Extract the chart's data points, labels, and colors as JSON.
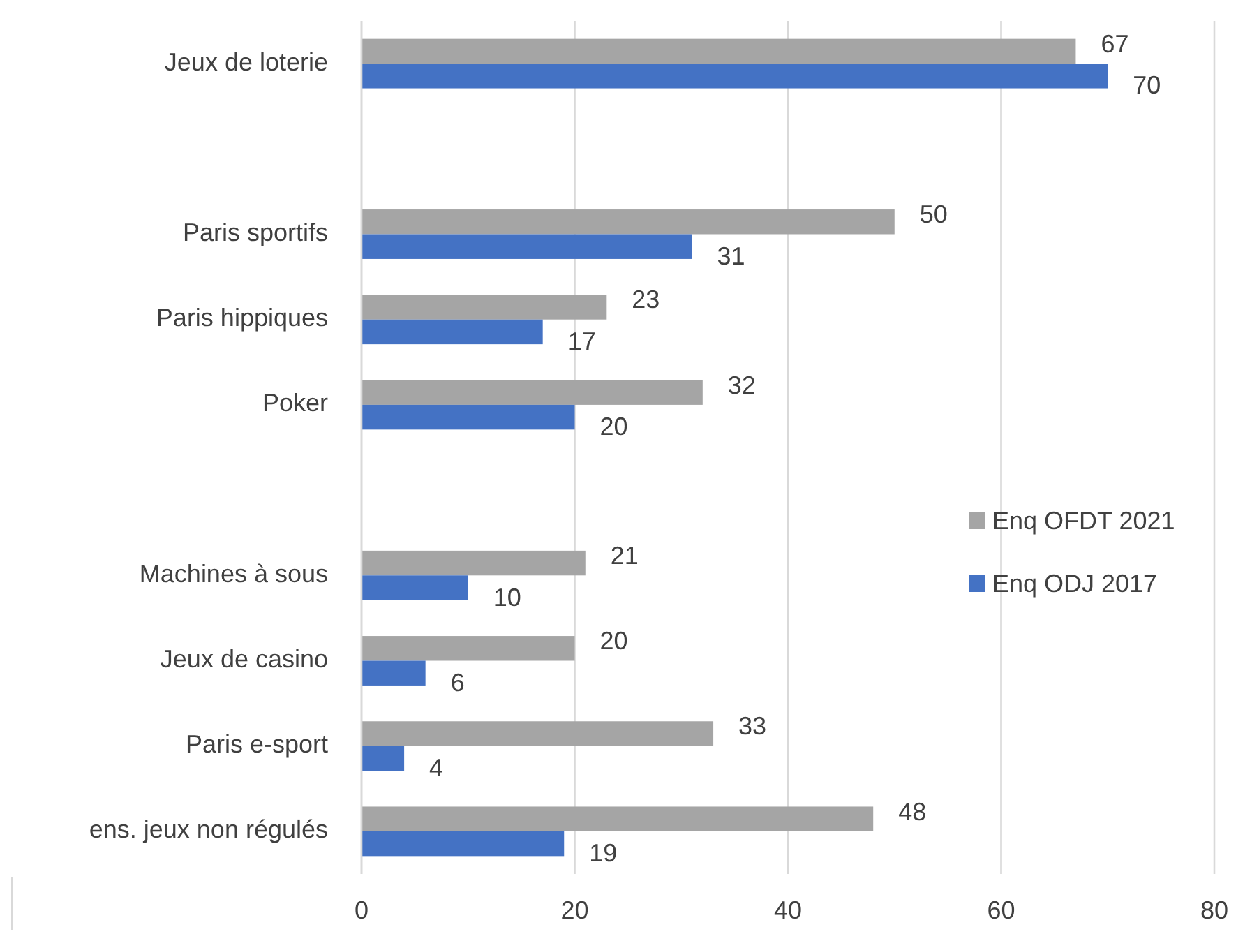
{
  "chart_data": {
    "type": "bar",
    "orientation": "horizontal",
    "categories": [
      "Jeux de loterie",
      null,
      "Paris sportifs",
      "Paris hippiques",
      "Poker",
      null,
      "Machines à sous",
      "Jeux de casino",
      "Paris e-sport",
      "ens. jeux non régulés"
    ],
    "series": [
      {
        "name": "Enq OFDT 2021",
        "color": "#a5a5a5",
        "values": [
          67,
          null,
          50,
          23,
          32,
          null,
          21,
          20,
          33,
          48
        ]
      },
      {
        "name": "Enq ODJ 2017",
        "color": "#4472c4",
        "values": [
          70,
          null,
          31,
          17,
          20,
          null,
          10,
          6,
          4,
          19
        ]
      }
    ],
    "xlim": [
      0,
      80
    ],
    "xticks": [
      0,
      20,
      40,
      60,
      80
    ],
    "grid": "x",
    "legend": "right",
    "data_labels": true
  }
}
